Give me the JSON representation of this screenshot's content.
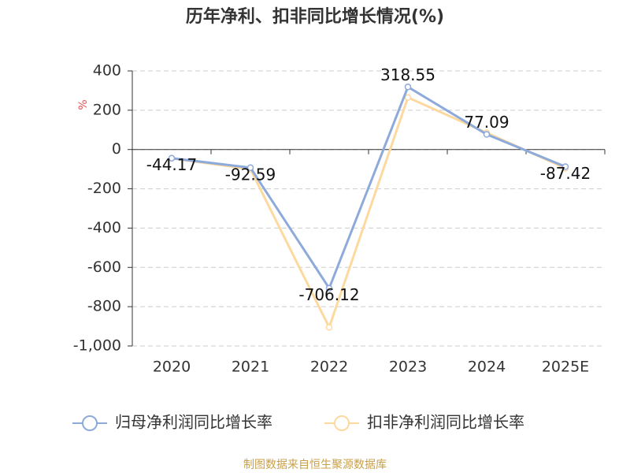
{
  "chart_data": {
    "type": "line",
    "title": "历年净利、扣非同比增长情况(%)",
    "y_label": "%",
    "categories": [
      "2020",
      "2021",
      "2022",
      "2023",
      "2024",
      "2025E"
    ],
    "series": [
      {
        "name": "归母净利润同比增长率",
        "color": "#8eaadb",
        "values": [
          -44.17,
          -92.59,
          -706.12,
          318.55,
          77.09,
          -87.42
        ]
      },
      {
        "name": "扣非净利润同比增长率",
        "color": "#fdd9a0",
        "values": [
          -45,
          -100,
          -905,
          265,
          85,
          -95
        ]
      }
    ],
    "ylim": [
      -1000,
      400
    ],
    "yticks": [
      {
        "value": -1000,
        "label": "-1,000"
      },
      -800,
      -600,
      -400,
      -200,
      0,
      200,
      400
    ],
    "grid": true,
    "source": "制图数据来自恒生聚源数据库"
  }
}
